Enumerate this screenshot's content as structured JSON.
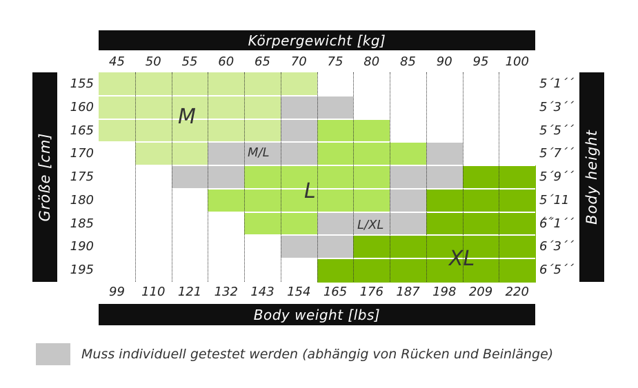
{
  "chart_data": {
    "type": "heatmap",
    "top_axis_title": "Körpergewicht [kg]",
    "bottom_axis_title": "Body weight [lbs]",
    "left_axis_title": "Größe [cm]",
    "right_axis_title": "Body height",
    "weights_kg": [
      "45",
      "50",
      "55",
      "60",
      "65",
      "70",
      "75",
      "80",
      "85",
      "90",
      "95",
      "100"
    ],
    "weights_lbs": [
      "99",
      "110",
      "121",
      "132",
      "143",
      "154",
      "165",
      "176",
      "187",
      "198",
      "209",
      "220"
    ],
    "heights_cm": [
      "155",
      "160",
      "165",
      "170",
      "175",
      "180",
      "185",
      "190",
      "195"
    ],
    "heights_ft": [
      "5´1´´",
      "5´3´´",
      "5´5´´",
      "5´7´´",
      "5´9´´",
      "5´11´´",
      "6´1´´",
      "6´3´´",
      "6´5´´"
    ],
    "categories_legend": {
      "M": "#d2ec9a",
      "M/L": "#c6c6c6",
      "L": "#b2e55a",
      "L/XL": "#c6c6c6",
      "XL": "#7cbb00",
      "none": "#ffffff"
    },
    "grid": [
      [
        "M",
        "M",
        "M",
        "M",
        "M",
        "M",
        "none",
        "none",
        "none",
        "none",
        "none",
        "none"
      ],
      [
        "M",
        "M",
        "M",
        "M",
        "M",
        "M/L",
        "M/L",
        "none",
        "none",
        "none",
        "none",
        "none"
      ],
      [
        "M",
        "M",
        "M",
        "M",
        "M",
        "M/L",
        "L",
        "L",
        "none",
        "none",
        "none",
        "none"
      ],
      [
        "none",
        "M",
        "M",
        "M/L",
        "M/L",
        "M/L",
        "L",
        "L",
        "L",
        "L/XL",
        "none",
        "none"
      ],
      [
        "none",
        "none",
        "M/L",
        "M/L",
        "L",
        "L",
        "L",
        "L",
        "L/XL",
        "L/XL",
        "XL",
        "XL"
      ],
      [
        "none",
        "none",
        "none",
        "L",
        "L",
        "L",
        "L",
        "L",
        "L/XL",
        "XL",
        "XL",
        "XL"
      ],
      [
        "none",
        "none",
        "none",
        "none",
        "L",
        "L",
        "L/XL",
        "L/XL",
        "L/XL",
        "XL",
        "XL",
        "XL"
      ],
      [
        "none",
        "none",
        "none",
        "none",
        "none",
        "L/XL",
        "L/XL",
        "XL",
        "XL",
        "XL",
        "XL",
        "XL"
      ],
      [
        "none",
        "none",
        "none",
        "none",
        "none",
        "none",
        "XL",
        "XL",
        "XL",
        "XL",
        "XL",
        "XL"
      ]
    ],
    "zone_labels": [
      "M",
      "M/L",
      "L",
      "L/XL",
      "XL"
    ]
  },
  "legend": {
    "swatch_color": "#c6c6c6",
    "text": "Muss individuell getestet werden (abhängig von Rücken und Beinlänge)"
  }
}
